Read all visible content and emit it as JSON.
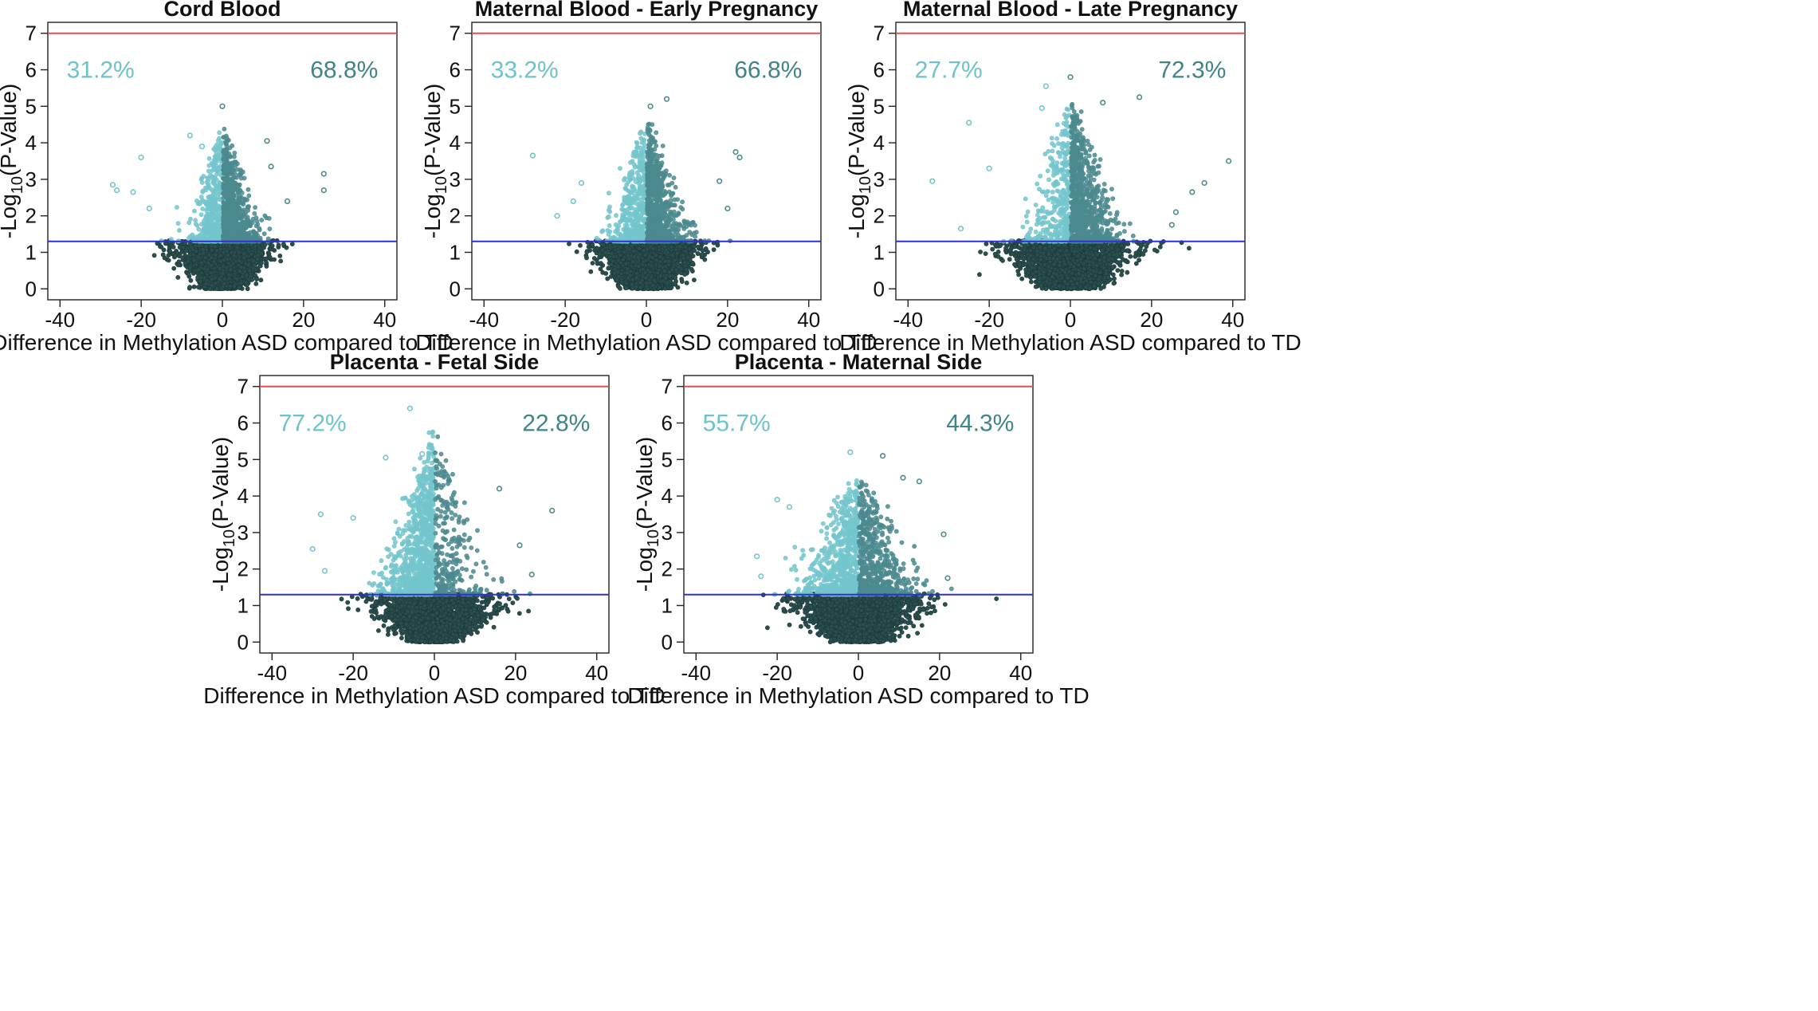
{
  "figure": {
    "x_label": "Difference in Methylation ASD compared to TD",
    "y_label_prefix": "-Log",
    "y_label_sub": "10",
    "y_label_suffix": "(P-Value)"
  },
  "colors": {
    "sig_left": "#73c5cc",
    "sig_right": "#4b8a8f",
    "nonsig": "#2b4f4f",
    "nonsig_edge": "#1c3838",
    "threshold_line": "#2f2fd8",
    "genomewide_line": "#e05050",
    "pct_left_text": "#6ec3cb",
    "pct_right_text": "#3f8489"
  },
  "chart_data": [
    {
      "type": "scatter",
      "title": "Cord Blood",
      "xlabel": "Difference in Methylation ASD compared to TD",
      "ylabel": "-Log10(P-Value)",
      "xlim": [
        -43,
        43
      ],
      "ylim": [
        -0.3,
        7.3
      ],
      "xticks": [
        -40,
        -20,
        0,
        20,
        40
      ],
      "yticks": [
        0,
        1,
        2,
        3,
        4,
        5,
        6,
        7
      ],
      "significance_line": 1.3,
      "genomewide_line": 7,
      "pct_left": "31.2%",
      "pct_right": "68.8%",
      "peak": 5.0,
      "spread_sig": 7,
      "spread_base": 11,
      "outliers": [
        [
          -27,
          2.85
        ],
        [
          -26,
          2.7
        ],
        [
          -22,
          2.65
        ],
        [
          -20,
          3.6
        ],
        [
          -8,
          4.2
        ],
        [
          -5,
          3.9
        ],
        [
          0,
          5.0
        ],
        [
          11,
          4.05
        ],
        [
          12,
          3.35
        ],
        [
          25,
          3.15
        ],
        [
          25,
          2.7
        ],
        [
          -18,
          2.2
        ],
        [
          16,
          2.4
        ]
      ]
    },
    {
      "type": "scatter",
      "title": "Maternal Blood - Early Pregnancy",
      "xlabel": "Difference in Methylation ASD compared to TD",
      "ylabel": "-Log10(P-Value)",
      "xlim": [
        -43,
        43
      ],
      "ylim": [
        -0.3,
        7.3
      ],
      "xticks": [
        -40,
        -20,
        0,
        20,
        40
      ],
      "yticks": [
        0,
        1,
        2,
        3,
        4,
        5,
        6,
        7
      ],
      "significance_line": 1.3,
      "genomewide_line": 7,
      "pct_left": "33.2%",
      "pct_right": "66.8%",
      "peak": 5.2,
      "spread_sig": 8,
      "spread_base": 12,
      "outliers": [
        [
          -28,
          3.65
        ],
        [
          -22,
          2.0
        ],
        [
          -16,
          2.9
        ],
        [
          5,
          5.2
        ],
        [
          1,
          5.0
        ],
        [
          22,
          3.75
        ],
        [
          23,
          3.6
        ],
        [
          18,
          2.95
        ],
        [
          20,
          2.2
        ],
        [
          -18,
          2.4
        ]
      ]
    },
    {
      "type": "scatter",
      "title": "Maternal Blood - Late Pregnancy",
      "xlabel": "Difference in Methylation ASD compared to TD",
      "ylabel": "-Log10(P-Value)",
      "xlim": [
        -43,
        43
      ],
      "ylim": [
        -0.3,
        7.3
      ],
      "xticks": [
        -40,
        -20,
        0,
        20,
        40
      ],
      "yticks": [
        0,
        1,
        2,
        3,
        4,
        5,
        6,
        7
      ],
      "significance_line": 1.3,
      "genomewide_line": 7,
      "pct_left": "27.7%",
      "pct_right": "72.3%",
      "peak": 5.8,
      "spread_sig": 9,
      "spread_base": 15,
      "outliers": [
        [
          -34,
          2.95
        ],
        [
          -25,
          4.55
        ],
        [
          -6,
          5.55
        ],
        [
          0,
          5.8
        ],
        [
          -7,
          4.95
        ],
        [
          17,
          5.25
        ],
        [
          8,
          5.1
        ],
        [
          30,
          2.65
        ],
        [
          33,
          2.9
        ],
        [
          39,
          3.5
        ],
        [
          -27,
          1.65
        ],
        [
          26,
          2.1
        ],
        [
          25,
          1.75
        ],
        [
          -20,
          3.3
        ]
      ]
    },
    {
      "type": "scatter",
      "title": "Placenta - Fetal Side",
      "xlabel": "Difference in Methylation ASD compared to TD",
      "ylabel": "-Log10(P-Value)",
      "xlim": [
        -43,
        43
      ],
      "ylim": [
        -0.3,
        7.3
      ],
      "xticks": [
        -40,
        -20,
        0,
        20,
        40
      ],
      "yticks": [
        0,
        1,
        2,
        3,
        4,
        5,
        6,
        7
      ],
      "significance_line": 1.3,
      "genomewide_line": 7,
      "pct_left": "77.2%",
      "pct_right": "22.8%",
      "peak": 6.4,
      "spread_sig": 11,
      "spread_base": 14,
      "outliers": [
        [
          -6,
          6.4
        ],
        [
          -3,
          5.15
        ],
        [
          -12,
          5.05
        ],
        [
          -30,
          2.55
        ],
        [
          -27,
          1.95
        ],
        [
          -28,
          3.5
        ],
        [
          16,
          4.2
        ],
        [
          29,
          3.6
        ],
        [
          24,
          1.85
        ],
        [
          21,
          2.65
        ],
        [
          -20,
          3.4
        ]
      ]
    },
    {
      "type": "scatter",
      "title": "Placenta - Maternal Side",
      "xlabel": "Difference in Methylation ASD compared to TD",
      "ylabel": "-Log10(P-Value)",
      "xlim": [
        -43,
        43
      ],
      "ylim": [
        -0.3,
        7.3
      ],
      "xticks": [
        -40,
        -20,
        0,
        20,
        40
      ],
      "yticks": [
        0,
        1,
        2,
        3,
        4,
        5,
        6,
        7
      ],
      "significance_line": 1.3,
      "genomewide_line": 7,
      "pct_left": "55.7%",
      "pct_right": "44.3%",
      "peak": 5.2,
      "spread_sig": 12,
      "spread_base": 15,
      "outliers": [
        [
          -25,
          2.35
        ],
        [
          -20,
          3.9
        ],
        [
          -2,
          5.2
        ],
        [
          6,
          5.1
        ],
        [
          11,
          4.5
        ],
        [
          15,
          4.4
        ],
        [
          21,
          2.95
        ],
        [
          22,
          1.75
        ],
        [
          -24,
          1.8
        ],
        [
          -17,
          3.7
        ]
      ]
    }
  ]
}
